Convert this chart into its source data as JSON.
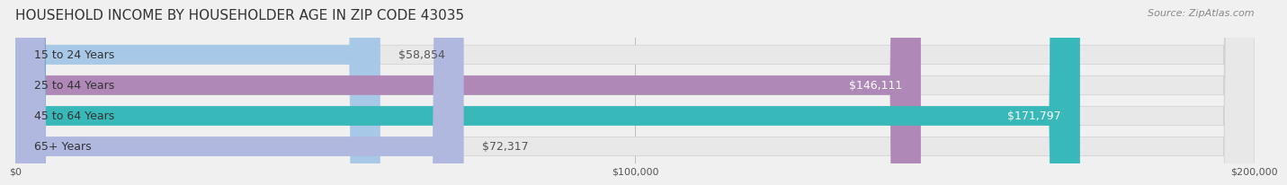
{
  "title": "HOUSEHOLD INCOME BY HOUSEHOLDER AGE IN ZIP CODE 43035",
  "source": "Source: ZipAtlas.com",
  "categories": [
    "15 to 24 Years",
    "25 to 44 Years",
    "45 to 64 Years",
    "65+ Years"
  ],
  "values": [
    58854,
    146111,
    171797,
    72317
  ],
  "bar_colors": [
    "#a8c8e8",
    "#b088b8",
    "#38b8b8",
    "#b0b8e0"
  ],
  "bar_edge_colors": [
    "#c0d8f0",
    "#c0a0c8",
    "#50c8c8",
    "#c0c8f0"
  ],
  "label_colors": [
    "#555555",
    "#ffffff",
    "#ffffff",
    "#555555"
  ],
  "xlim": [
    0,
    200000
  ],
  "xtick_labels": [
    "$0",
    "$100,000",
    "$200,000"
  ],
  "xtick_values": [
    0,
    100000,
    200000
  ],
  "background_color": "#f0f0f0",
  "bar_bg_color": "#e8e8e8",
  "title_fontsize": 11,
  "source_fontsize": 8,
  "bar_height": 0.62,
  "value_fontsize": 9
}
